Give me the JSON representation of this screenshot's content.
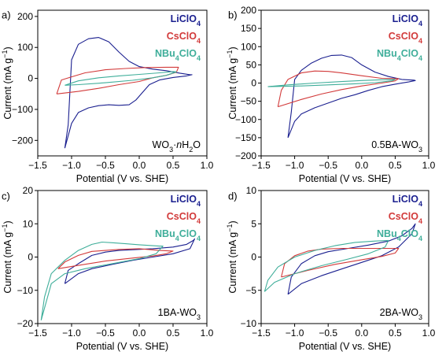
{
  "chart_data": [
    {
      "type": "line",
      "panel": "a)",
      "xlabel": "Potential (V vs. SHE)",
      "ylabel": "Current (mA g⁻¹)",
      "xlim": [
        -1.5,
        1.0
      ],
      "ylim": [
        -250,
        220
      ],
      "xticks": [
        -1.5,
        -1.0,
        -0.5,
        0.0,
        0.5,
        1.0
      ],
      "xtick_labels": [
        "−1.5",
        "−1.0",
        "−0.5",
        "0.0",
        "0.5",
        "1.0"
      ],
      "yticks": [
        -200,
        -100,
        0,
        100,
        200
      ],
      "ytick_labels": [
        "−200",
        "−100",
        "0",
        "100",
        "200"
      ],
      "legend_position": "top-right",
      "annotation": "WO₃·nH₂O",
      "series": [
        {
          "name": "LiClO₄",
          "color": "#1a1f8f",
          "points": [
            [
              -1.1,
              -225
            ],
            [
              -1.05,
              -150
            ],
            [
              -1.0,
              60
            ],
            [
              -0.9,
              110
            ],
            [
              -0.75,
              128
            ],
            [
              -0.6,
              132
            ],
            [
              -0.45,
              118
            ],
            [
              -0.3,
              85
            ],
            [
              -0.15,
              55
            ],
            [
              0.0,
              38
            ],
            [
              0.2,
              30
            ],
            [
              0.4,
              25
            ],
            [
              0.6,
              17
            ],
            [
              0.75,
              12
            ],
            [
              0.78,
              12
            ],
            [
              0.7,
              8
            ],
            [
              0.5,
              3
            ],
            [
              0.3,
              -5
            ],
            [
              0.15,
              -20
            ],
            [
              0.05,
              -45
            ],
            [
              -0.05,
              -70
            ],
            [
              -0.15,
              -85
            ],
            [
              -0.3,
              -87
            ],
            [
              -0.45,
              -85
            ],
            [
              -0.6,
              -88
            ],
            [
              -0.75,
              -95
            ],
            [
              -0.9,
              -110
            ],
            [
              -1.0,
              -145
            ],
            [
              -1.1,
              -225
            ]
          ]
        },
        {
          "name": "CsClO₄",
          "color": "#d23a3a",
          "points": [
            [
              -1.22,
              -50
            ],
            [
              -1.15,
              -5
            ],
            [
              -1.0,
              5
            ],
            [
              -0.8,
              18
            ],
            [
              -0.5,
              28
            ],
            [
              -0.2,
              32
            ],
            [
              0.1,
              35
            ],
            [
              0.4,
              36
            ],
            [
              0.58,
              36
            ],
            [
              0.55,
              20
            ],
            [
              0.4,
              10
            ],
            [
              0.2,
              2
            ],
            [
              0.0,
              -10
            ],
            [
              -0.3,
              -20
            ],
            [
              -0.6,
              -32
            ],
            [
              -0.9,
              -42
            ],
            [
              -1.22,
              -50
            ]
          ]
        },
        {
          "name": "NBu₄ClO₄",
          "color": "#3fae9a",
          "points": [
            [
              -1.1,
              -22
            ],
            [
              -0.9,
              -8
            ],
            [
              -0.6,
              2
            ],
            [
              -0.3,
              8
            ],
            [
              0.0,
              13
            ],
            [
              0.3,
              18
            ],
            [
              0.5,
              22
            ],
            [
              0.55,
              21
            ],
            [
              0.4,
              10
            ],
            [
              0.2,
              2
            ],
            [
              -0.1,
              -6
            ],
            [
              -0.5,
              -14
            ],
            [
              -0.9,
              -20
            ],
            [
              -1.1,
              -22
            ]
          ]
        }
      ]
    },
    {
      "type": "line",
      "panel": "b)",
      "xlabel": "Potential (V vs. SHE)",
      "ylabel": "Current (mA g⁻¹)",
      "xlim": [
        -1.5,
        1.0
      ],
      "ylim": [
        -200,
        200
      ],
      "xticks": [
        -1.5,
        -1.0,
        -0.5,
        0.0,
        0.5,
        1.0
      ],
      "xtick_labels": [
        "−1.5",
        "−1.0",
        "−0.5",
        "0.0",
        "0.5",
        "1.0"
      ],
      "yticks": [
        -200,
        -150,
        -100,
        -50,
        0,
        50,
        100,
        150,
        200
      ],
      "ytick_labels": [
        "−200",
        "−150",
        "−100",
        "−50",
        "0",
        "50",
        "100",
        "150",
        "200"
      ],
      "legend_position": "top-right",
      "annotation": "0.5BA-WO₃",
      "series": [
        {
          "name": "LiClO₄",
          "color": "#1a1f8f",
          "points": [
            [
              -1.1,
              -150
            ],
            [
              -1.05,
              -80
            ],
            [
              -1.0,
              10
            ],
            [
              -0.9,
              35
            ],
            [
              -0.75,
              55
            ],
            [
              -0.6,
              68
            ],
            [
              -0.45,
              76
            ],
            [
              -0.3,
              77
            ],
            [
              -0.15,
              70
            ],
            [
              0.0,
              50
            ],
            [
              0.2,
              30
            ],
            [
              0.4,
              18
            ],
            [
              0.6,
              10
            ],
            [
              0.78,
              8
            ],
            [
              0.8,
              7
            ],
            [
              0.7,
              3
            ],
            [
              0.5,
              -3
            ],
            [
              0.3,
              -10
            ],
            [
              0.1,
              -20
            ],
            [
              -0.1,
              -32
            ],
            [
              -0.3,
              -42
            ],
            [
              -0.5,
              -55
            ],
            [
              -0.7,
              -68
            ],
            [
              -0.9,
              -85
            ],
            [
              -1.0,
              -105
            ],
            [
              -1.1,
              -150
            ]
          ]
        },
        {
          "name": "CsClO₄",
          "color": "#d23a3a",
          "points": [
            [
              -1.25,
              -65
            ],
            [
              -1.2,
              -20
            ],
            [
              -1.1,
              10
            ],
            [
              -0.9,
              28
            ],
            [
              -0.7,
              33
            ],
            [
              -0.5,
              32
            ],
            [
              -0.3,
              28
            ],
            [
              0.0,
              20
            ],
            [
              0.3,
              13
            ],
            [
              0.5,
              12
            ],
            [
              0.55,
              12
            ],
            [
              0.5,
              6
            ],
            [
              0.3,
              0
            ],
            [
              0.0,
              -8
            ],
            [
              -0.3,
              -18
            ],
            [
              -0.6,
              -30
            ],
            [
              -0.9,
              -45
            ],
            [
              -1.25,
              -65
            ]
          ]
        },
        {
          "name": "NBu₄ClO₄",
          "color": "#3fae9a",
          "points": [
            [
              -1.4,
              -10
            ],
            [
              -1.1,
              -5
            ],
            [
              -0.7,
              0
            ],
            [
              -0.3,
              4
            ],
            [
              0.0,
              7
            ],
            [
              0.3,
              9
            ],
            [
              0.5,
              10
            ],
            [
              0.45,
              6
            ],
            [
              0.2,
              1
            ],
            [
              -0.1,
              -2
            ],
            [
              -0.5,
              -5
            ],
            [
              -0.9,
              -8
            ],
            [
              -1.4,
              -10
            ]
          ]
        }
      ]
    },
    {
      "type": "line",
      "panel": "c)",
      "xlabel": "Potential (V vs. SHE)",
      "ylabel": "Current (mA g⁻¹)",
      "xlim": [
        -1.5,
        1.0
      ],
      "ylim": [
        -20,
        20
      ],
      "xticks": [
        -1.5,
        -1.0,
        -0.5,
        0.0,
        0.5,
        1.0
      ],
      "xtick_labels": [
        "−1.5",
        "−1.0",
        "−0.5",
        "0.0",
        "0.5",
        "1.0"
      ],
      "yticks": [
        -20,
        -10,
        0,
        10,
        20
      ],
      "ytick_labels": [
        "−20",
        "−10",
        "0",
        "10",
        "20"
      ],
      "legend_position": "top-right",
      "annotation": "1BA-WO₃",
      "series": [
        {
          "name": "LiClO₄",
          "color": "#1a1f8f",
          "points": [
            [
              -1.1,
              -8
            ],
            [
              -1.05,
              -4
            ],
            [
              -0.9,
              -2
            ],
            [
              -0.7,
              0.5
            ],
            [
              -0.5,
              1.5
            ],
            [
              -0.3,
              2
            ],
            [
              -0.1,
              2.2
            ],
            [
              0.2,
              2.5
            ],
            [
              0.5,
              3
            ],
            [
              0.7,
              3.8
            ],
            [
              0.8,
              5
            ],
            [
              0.82,
              5.5
            ],
            [
              0.75,
              2.5
            ],
            [
              0.5,
              1
            ],
            [
              0.2,
              0
            ],
            [
              -0.1,
              -1
            ],
            [
              -0.4,
              -2.2
            ],
            [
              -0.7,
              -3.5
            ],
            [
              -0.9,
              -5
            ],
            [
              -1.1,
              -8
            ]
          ]
        },
        {
          "name": "CsClO₄",
          "color": "#d23a3a",
          "points": [
            [
              -1.2,
              -3.5
            ],
            [
              -1.1,
              -1.5
            ],
            [
              -0.9,
              0.5
            ],
            [
              -0.7,
              1.7
            ],
            [
              -0.5,
              2
            ],
            [
              -0.3,
              2.3
            ],
            [
              0.0,
              2.5
            ],
            [
              0.3,
              2
            ],
            [
              0.5,
              1.8
            ],
            [
              0.4,
              1
            ],
            [
              0.2,
              0.3
            ],
            [
              -0.1,
              -0.3
            ],
            [
              -0.5,
              -1.2
            ],
            [
              -0.9,
              -2.5
            ],
            [
              -1.2,
              -3.5
            ]
          ]
        },
        {
          "name": "NBu₄ClO₄",
          "color": "#3fae9a",
          "points": [
            [
              -1.45,
              -19
            ],
            [
              -1.4,
              -12
            ],
            [
              -1.3,
              -5
            ],
            [
              -1.1,
              -1
            ],
            [
              -0.9,
              2
            ],
            [
              -0.7,
              3.8
            ],
            [
              -0.55,
              4.5
            ],
            [
              -0.4,
              4.3
            ],
            [
              -0.2,
              4
            ],
            [
              0.0,
              3.7
            ],
            [
              0.3,
              3.3
            ],
            [
              0.35,
              3.3
            ],
            [
              0.25,
              1
            ],
            [
              0.0,
              -0.5
            ],
            [
              -0.4,
              -2
            ],
            [
              -0.8,
              -3.5
            ],
            [
              -1.1,
              -5
            ],
            [
              -1.3,
              -8
            ],
            [
              -1.45,
              -19
            ]
          ]
        }
      ]
    },
    {
      "type": "line",
      "panel": "d)",
      "xlabel": "Potential (V vs. SHE)",
      "ylabel": "Current (mA g⁻¹)",
      "xlim": [
        -1.5,
        1.0
      ],
      "ylim": [
        -10,
        10
      ],
      "xticks": [
        -1.5,
        -1.0,
        -0.5,
        0.0,
        0.5,
        1.0
      ],
      "xtick_labels": [
        "−1.5",
        "−1.0",
        "−0.5",
        "0.0",
        "0.5",
        "1.0"
      ],
      "yticks": [
        -10,
        -5,
        0,
        5,
        10
      ],
      "ytick_labels": [
        "−10",
        "−5",
        "0",
        "5",
        "10"
      ],
      "legend_position": "top-right",
      "annotation": "2BA-WO₃",
      "series": [
        {
          "name": "LiClO₄",
          "color": "#1a1f8f",
          "points": [
            [
              -1.1,
              -5.6
            ],
            [
              -1.05,
              -3
            ],
            [
              -0.9,
              -1
            ],
            [
              -0.7,
              0.2
            ],
            [
              -0.5,
              0.8
            ],
            [
              -0.2,
              1.3
            ],
            [
              0.1,
              1.8
            ],
            [
              0.4,
              2.4
            ],
            [
              0.6,
              3.2
            ],
            [
              0.75,
              4.3
            ],
            [
              0.8,
              5
            ],
            [
              0.75,
              3.5
            ],
            [
              0.55,
              1.5
            ],
            [
              0.3,
              0.2
            ],
            [
              0.0,
              -0.8
            ],
            [
              -0.3,
              -1.8
            ],
            [
              -0.6,
              -2.8
            ],
            [
              -0.9,
              -4
            ],
            [
              -1.1,
              -5.6
            ]
          ]
        },
        {
          "name": "CsClO₄",
          "color": "#d23a3a",
          "points": [
            [
              -1.2,
              -3
            ],
            [
              -1.15,
              -1
            ],
            [
              -1.0,
              0.2
            ],
            [
              -0.8,
              0.9
            ],
            [
              -0.6,
              1.2
            ],
            [
              -0.3,
              1.3
            ],
            [
              0.0,
              1.3
            ],
            [
              0.3,
              1.3
            ],
            [
              0.55,
              1.3
            ],
            [
              0.5,
              0.6
            ],
            [
              0.3,
              0.1
            ],
            [
              0.0,
              -0.4
            ],
            [
              -0.4,
              -1.1
            ],
            [
              -0.8,
              -2
            ],
            [
              -1.2,
              -3
            ]
          ]
        },
        {
          "name": "NBu₄ClO₄",
          "color": "#3fae9a",
          "points": [
            [
              -1.45,
              -5.2
            ],
            [
              -1.4,
              -3.5
            ],
            [
              -1.25,
              -1.5
            ],
            [
              -1.0,
              0
            ],
            [
              -0.7,
              1
            ],
            [
              -0.4,
              1.7
            ],
            [
              -0.1,
              2.2
            ],
            [
              0.2,
              2.4
            ],
            [
              0.4,
              2.5
            ],
            [
              0.35,
              1.5
            ],
            [
              0.1,
              0.5
            ],
            [
              -0.2,
              -0.3
            ],
            [
              -0.6,
              -1.3
            ],
            [
              -1.0,
              -2.5
            ],
            [
              -1.3,
              -3.8
            ],
            [
              -1.45,
              -5.2
            ]
          ]
        }
      ]
    }
  ]
}
